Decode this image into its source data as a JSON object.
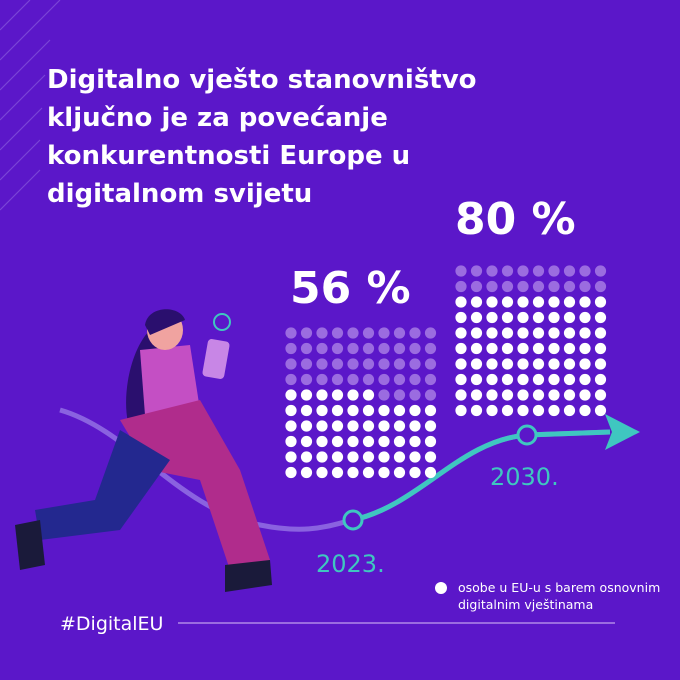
{
  "chart_data": {
    "type": "waffle",
    "title": [
      "Digitalno vješto stanovništvo",
      "ključno je za povećanje",
      "konkurentnosti Europe u",
      "digitalnom svijetu"
    ],
    "categories": [
      "2023.",
      "2030."
    ],
    "values": [
      56,
      80
    ],
    "value_labels": [
      "56 %",
      "80 %"
    ],
    "total": 100,
    "color": "#ffffff",
    "empty_color": "#9b6ce0",
    "legend": [
      "osobe u EU-u s barem osnovnim",
      "digitalnim vještinama"
    ],
    "hashtag": "#DigitalEU"
  }
}
